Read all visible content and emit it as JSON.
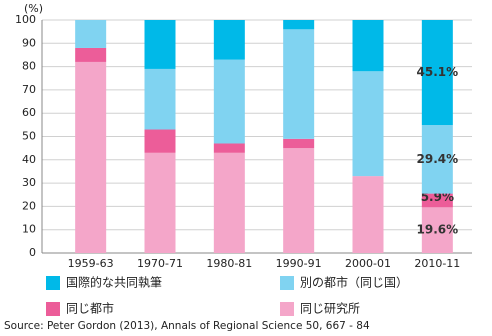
{
  "chart_data": {
    "type": "stacked-bar",
    "y_label": "(%)",
    "categories": [
      "1959-63",
      "1970-71",
      "1980-81",
      "1990-91",
      "2000-01",
      "2010-11"
    ],
    "series": [
      {
        "name": "同じ研究所",
        "color": "#f4a6c9",
        "values": [
          82,
          43,
          43,
          45,
          33,
          19.6
        ],
        "value_labels": [
          null,
          null,
          null,
          null,
          null,
          "19.6%"
        ]
      },
      {
        "name": "同じ都市",
        "color": "#ec5d99",
        "values": [
          6,
          10,
          4,
          4,
          0,
          5.9
        ],
        "value_labels": [
          null,
          null,
          null,
          null,
          null,
          "5.9%"
        ]
      },
      {
        "name": "別の都市（同じ国）",
        "color": "#80d3f1",
        "values": [
          12,
          26,
          36,
          47,
          45,
          29.4
        ],
        "value_labels": [
          null,
          null,
          null,
          null,
          null,
          "29.4%"
        ]
      },
      {
        "name": "国際的な共同執筆",
        "color": "#00b9e8",
        "values": [
          0,
          21,
          17,
          4,
          22,
          45.1
        ],
        "value_labels": [
          null,
          null,
          null,
          null,
          null,
          "45.1%"
        ]
      }
    ],
    "ylim": [
      0,
      100
    ],
    "yticks": [
      0,
      10,
      20,
      30,
      40,
      50,
      60,
      70,
      80,
      90,
      100
    ],
    "grid": true,
    "source": "Source: Peter Gordon (2013), Annals of Regional Science 50, 667 - 84"
  }
}
